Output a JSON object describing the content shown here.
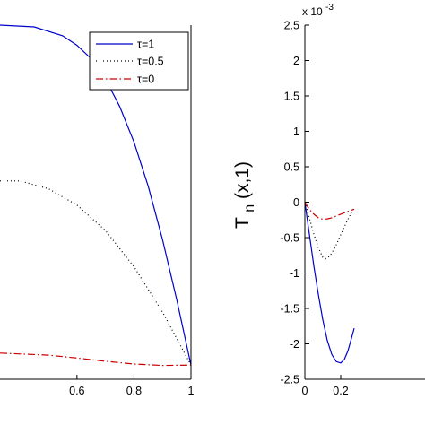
{
  "chart_data": [
    {
      "type": "line",
      "title": "",
      "xlabel": "",
      "ylabel": "",
      "xlim": [
        0.33,
        1.0
      ],
      "ylim": [
        0,
        1
      ],
      "grid": false,
      "legend": "top-right",
      "x_tick_labels": [
        "0.6",
        "0.8",
        "1"
      ],
      "y_tick_labels": [],
      "series": [
        {
          "name": "τ=1",
          "color": "#0000cc",
          "style": "solid",
          "x": [
            0.33,
            0.45,
            0.55,
            0.6,
            0.65,
            0.7,
            0.75,
            0.8,
            0.85,
            0.9,
            0.95,
            1.0
          ],
          "y": [
            1.0,
            0.995,
            0.97,
            0.943,
            0.905,
            0.848,
            0.77,
            0.67,
            0.545,
            0.395,
            0.225,
            0.04
          ]
        },
        {
          "name": "τ=0.5",
          "color": "#000000",
          "style": "dotted",
          "x": [
            0.33,
            0.4,
            0.5,
            0.6,
            0.7,
            0.8,
            0.9,
            1.0
          ],
          "y": [
            0.56,
            0.56,
            0.538,
            0.492,
            0.42,
            0.318,
            0.19,
            0.04
          ]
        },
        {
          "name": "τ=0",
          "color": "#cc0000",
          "style": "dashdot",
          "x": [
            0.33,
            0.5,
            0.6,
            0.7,
            0.8,
            0.9,
            1.0
          ],
          "y": [
            0.074,
            0.068,
            0.06,
            0.051,
            0.043,
            0.039,
            0.04
          ]
        }
      ]
    },
    {
      "type": "line",
      "title": "",
      "xlabel": "",
      "ylabel": "T_n(x,1)",
      "ylabel_main": "T",
      "ylabel_sub": "n",
      "ylabel_rest": "(x,1)",
      "y_multiplier": "x 10",
      "y_multiplier_exp": "-3",
      "xlim": [
        0,
        0.675
      ],
      "ylim": [
        -2.5,
        2.5
      ],
      "grid": false,
      "x_ticks": [
        0,
        0.2
      ],
      "x_tick_labels": [
        "0",
        "0.2"
      ],
      "y_ticks": [
        -2.5,
        -2,
        -1.5,
        -1,
        -0.5,
        0,
        0.5,
        1,
        1.5,
        2,
        2.5
      ],
      "y_tick_labels": [
        "-2.5",
        "-2",
        "-1.5",
        "-1",
        "-0.5",
        "0",
        "0.5",
        "1",
        "1.5",
        "2",
        "2.5"
      ],
      "series": [
        {
          "color": "#0000cc",
          "style": "solid",
          "x": [
            0,
            0.025,
            0.05,
            0.075,
            0.1,
            0.125,
            0.15,
            0.175,
            0.2,
            0.22,
            0.24,
            0.26,
            0.275
          ],
          "y": [
            0,
            -0.45,
            -0.9,
            -1.3,
            -1.66,
            -1.95,
            -2.15,
            -2.25,
            -2.27,
            -2.22,
            -2.1,
            -1.92,
            -1.78
          ]
        },
        {
          "color": "#000000",
          "style": "dotted",
          "x": [
            0,
            0.025,
            0.05,
            0.075,
            0.1,
            0.115,
            0.14,
            0.17,
            0.2,
            0.24,
            0.275
          ],
          "y": [
            0,
            -0.22,
            -0.45,
            -0.64,
            -0.78,
            -0.8,
            -0.76,
            -0.63,
            -0.46,
            -0.24,
            -0.08
          ]
        },
        {
          "color": "#cc0000",
          "style": "dashdot",
          "x": [
            0,
            0.025,
            0.05,
            0.075,
            0.1,
            0.125,
            0.15,
            0.2,
            0.25,
            0.275
          ],
          "y": [
            0,
            -0.1,
            -0.17,
            -0.22,
            -0.24,
            -0.235,
            -0.22,
            -0.17,
            -0.12,
            -0.1
          ]
        }
      ]
    }
  ]
}
